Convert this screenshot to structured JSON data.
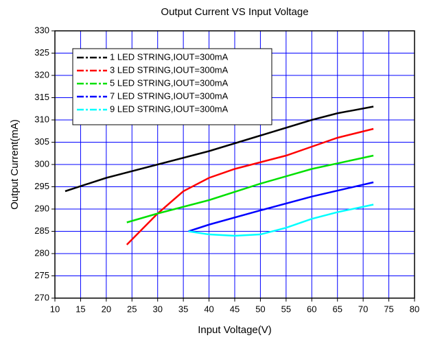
{
  "chart_data": {
    "type": "line",
    "title": "Output Current VS Input Voltage",
    "x_label": "Input Voltage(V)",
    "y_label": "Output Current(mA)",
    "xlim": [
      10,
      80
    ],
    "xticks": [
      10,
      15,
      20,
      25,
      30,
      35,
      40,
      45,
      50,
      55,
      60,
      65,
      70,
      75,
      80
    ],
    "ylim": [
      270,
      330
    ],
    "yticks": [
      270,
      275,
      280,
      285,
      290,
      295,
      300,
      305,
      310,
      315,
      320,
      325,
      330
    ],
    "grid": true,
    "grid_color": "#0000ff",
    "legend": "upper left",
    "series": [
      {
        "name": "1 LED STRING,IOUT=300mA",
        "color": "#000000",
        "x": [
          12,
          20,
          30,
          40,
          50,
          60,
          65,
          72
        ],
        "values": [
          294,
          297,
          300,
          303,
          306.5,
          310,
          311.5,
          313
        ]
      },
      {
        "name": "3 LED STRING,IOUT=300mA",
        "color": "#ff0000",
        "x": [
          24,
          27,
          30,
          35,
          40,
          45,
          50,
          55,
          60,
          65,
          72
        ],
        "values": [
          282,
          285.5,
          289,
          294,
          297,
          299,
          300.5,
          302,
          304,
          306,
          308
        ]
      },
      {
        "name": "5 LED STRING,IOUT=300mA",
        "color": "#00e000",
        "x": [
          24,
          30,
          40,
          50,
          60,
          72
        ],
        "values": [
          287,
          289,
          292,
          295.7,
          299,
          302
        ]
      },
      {
        "name": "7 LED STRING,IOUT=300mA",
        "color": "#0000ff",
        "x": [
          36,
          40,
          50,
          60,
          72
        ],
        "values": [
          285,
          286.5,
          289.7,
          292.8,
          296
        ]
      },
      {
        "name": "9 LED STRING,IOUT=300mA",
        "color": "#00ffff",
        "x": [
          36,
          40,
          45,
          50,
          55,
          60,
          65,
          72
        ],
        "values": [
          285,
          284.3,
          284,
          284.3,
          285.8,
          287.8,
          289.3,
          291
        ]
      }
    ]
  }
}
